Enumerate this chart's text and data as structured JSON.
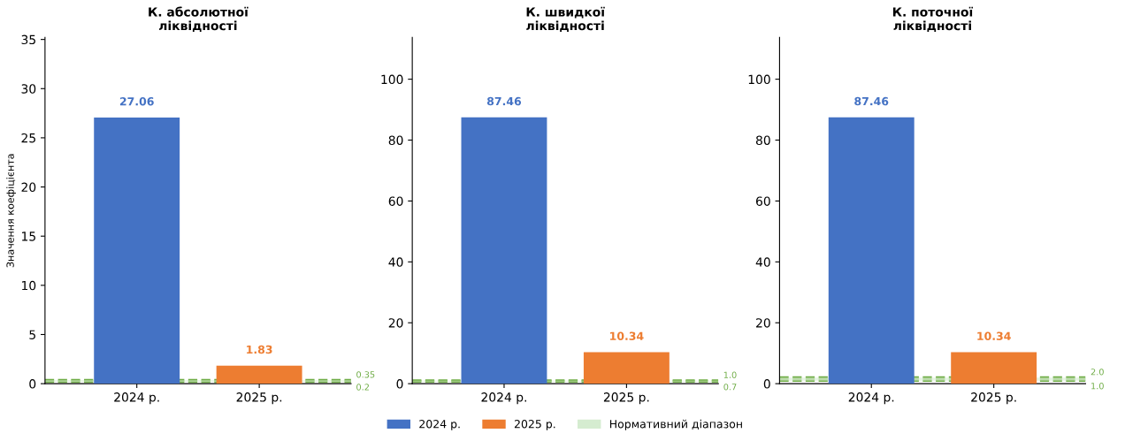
{
  "chart_data": [
    {
      "type": "bar",
      "title": "К. абсолютної\nліквідності",
      "ylabel": "Значення коефіцієнта",
      "categories": [
        "2024 р.",
        "2025 р."
      ],
      "series": [
        {
          "color": "#4472c4",
          "values": [
            27.06,
            null
          ]
        },
        {
          "color": "#ed7d31",
          "values": [
            null,
            1.83
          ]
        }
      ],
      "ylim": [
        0,
        35.2
      ],
      "yticks": [
        0,
        5,
        10,
        15,
        20,
        25,
        30,
        35
      ],
      "data_labels": true,
      "grid": false,
      "bands": [
        {
          "axis": "y",
          "from": 0.2,
          "to": 0.35,
          "color": "#d5ecd0"
        }
      ],
      "ref_lines": [
        {
          "axis": "y",
          "value": 0.2,
          "label": "0.2",
          "color": "#70ad47",
          "line_style": "dashed"
        },
        {
          "axis": "y",
          "value": 0.35,
          "label": "0.35",
          "color": "#70ad47",
          "line_style": "dashed"
        }
      ]
    },
    {
      "type": "bar",
      "title": "К. швидкої\nліквідності",
      "categories": [
        "2024 р.",
        "2025 р."
      ],
      "series": [
        {
          "name": "2024 р.",
          "color": "#4472c4",
          "values": [
            87.46,
            null
          ]
        },
        {
          "name": "2025 р.",
          "color": "#ed7d31",
          "values": [
            null,
            10.34
          ]
        }
      ],
      "ylim": [
        0,
        113.7
      ],
      "yticks": [
        0,
        20,
        40,
        60,
        80,
        100
      ],
      "data_labels": true,
      "grid": false,
      "legend": "bottom",
      "bands": [
        {
          "axis": "y",
          "from": 0.7,
          "to": 1.0,
          "label": "Нормативний діапазон",
          "color": "#d5ecd0"
        }
      ],
      "ref_lines": [
        {
          "axis": "y",
          "value": 0.7,
          "label": "0.7",
          "color": "#70ad47",
          "line_style": "dashed"
        },
        {
          "axis": "y",
          "value": 1.0,
          "label": "1.0",
          "color": "#70ad47",
          "line_style": "dashed"
        }
      ]
    },
    {
      "type": "bar",
      "title": "К. поточної\nліквідності",
      "categories": [
        "2024 р.",
        "2025 р."
      ],
      "series": [
        {
          "color": "#4472c4",
          "values": [
            87.46,
            null
          ]
        },
        {
          "color": "#ed7d31",
          "values": [
            null,
            10.34
          ]
        }
      ],
      "ylim": [
        0,
        113.7
      ],
      "yticks": [
        0,
        20,
        40,
        60,
        80,
        100
      ],
      "data_labels": true,
      "grid": false,
      "bands": [
        {
          "axis": "y",
          "from": 1.0,
          "to": 2.0,
          "color": "#d5ecd0"
        }
      ],
      "ref_lines": [
        {
          "axis": "y",
          "value": 1.0,
          "label": "1.0",
          "color": "#70ad47",
          "line_style": "dashed"
        },
        {
          "axis": "y",
          "value": 2.0,
          "label": "2.0",
          "color": "#70ad47",
          "line_style": "dashed"
        }
      ]
    }
  ]
}
